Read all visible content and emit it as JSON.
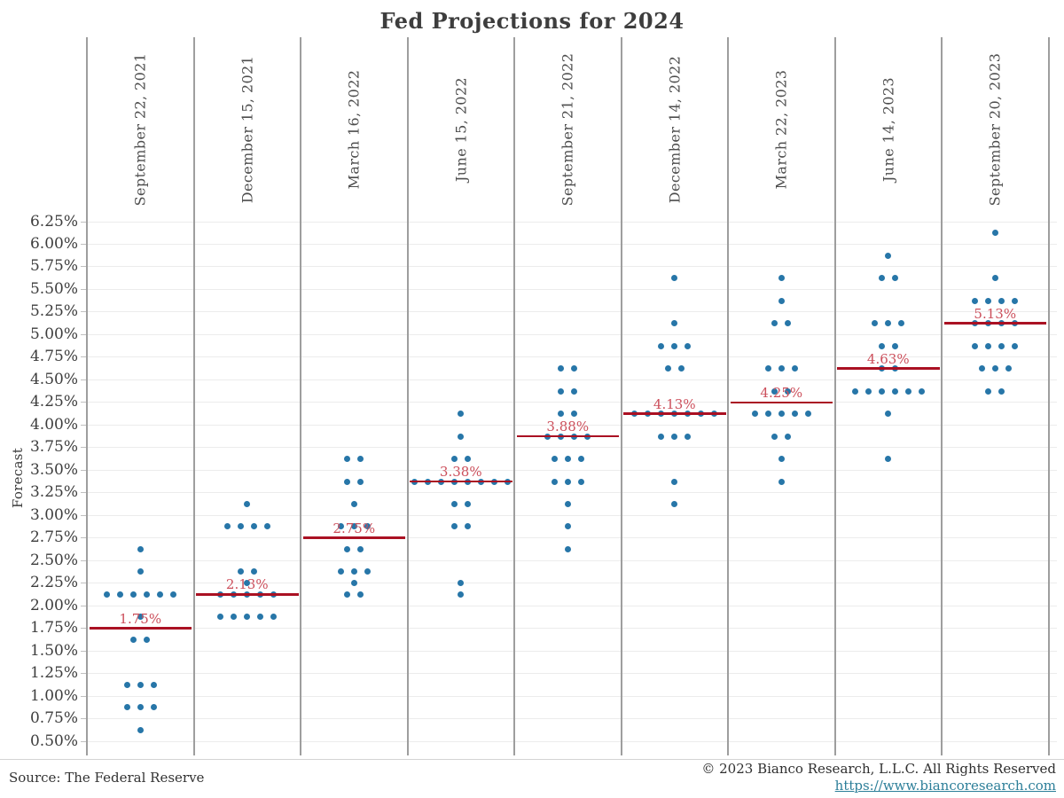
{
  "title": "Fed Projections for 2024",
  "y_axis": {
    "label": "Forecast",
    "ticks": [
      "6.25%",
      "6.00%",
      "5.75%",
      "5.50%",
      "5.25%",
      "5.00%",
      "4.75%",
      "4.50%",
      "4.25%",
      "4.00%",
      "3.75%",
      "3.50%",
      "3.25%",
      "3.00%",
      "2.75%",
      "2.50%",
      "2.25%",
      "2.00%",
      "1.75%",
      "1.50%",
      "1.25%",
      "1.00%",
      "0.75%",
      "0.50%"
    ]
  },
  "footer": {
    "source": "Source: The Federal Reserve",
    "copyright": "© 2023 Bianco Research, L.L.C. All Rights Reserved",
    "link": "https://www.biancoresearch.com"
  },
  "colors": {
    "dot": "#2776a8",
    "median_line": "#aa1123",
    "median_label": "#cc4f5b",
    "grid_horizontal": "#ececec",
    "column_separator": "#9e9e9e",
    "text": "#3d3d3d",
    "link": "#2d7f99"
  },
  "chart_data": {
    "type": "scatter",
    "title": "Fed Projections for 2024",
    "xlabel": "",
    "ylabel": "Forecast",
    "ylim": [
      0.5,
      6.25
    ],
    "ytick_step": 0.25,
    "grid": true,
    "legend": "none",
    "description": "Dot plot of individual FOMC member federal funds rate projections for 2024 at nine meetings; red line and label mark the median projection.",
    "columns": [
      {
        "date": "September 22, 2021",
        "median": 1.75,
        "median_label": "1.75%",
        "dots": [
          [
            2.625,
            1
          ],
          [
            2.375,
            1
          ],
          [
            2.125,
            6
          ],
          [
            1.875,
            1
          ],
          [
            1.625,
            2
          ],
          [
            1.125,
            3
          ],
          [
            0.875,
            3
          ],
          [
            0.625,
            1
          ]
        ]
      },
      {
        "date": "December 15, 2021",
        "median": 2.125,
        "median_label": "2.13%",
        "dots": [
          [
            3.125,
            1
          ],
          [
            2.875,
            4
          ],
          [
            2.375,
            2
          ],
          [
            2.25,
            1
          ],
          [
            2.125,
            5
          ],
          [
            1.875,
            5
          ]
        ]
      },
      {
        "date": "March 16, 2022",
        "median": 2.75,
        "median_label": "2.75%",
        "dots": [
          [
            3.625,
            2
          ],
          [
            3.375,
            2
          ],
          [
            3.125,
            1
          ],
          [
            2.875,
            3
          ],
          [
            2.625,
            2
          ],
          [
            2.375,
            3
          ],
          [
            2.25,
            1
          ],
          [
            2.125,
            2
          ]
        ]
      },
      {
        "date": "June 15, 2022",
        "median": 3.375,
        "median_label": "3.38%",
        "dots": [
          [
            4.125,
            1
          ],
          [
            3.875,
            1
          ],
          [
            3.625,
            2
          ],
          [
            3.375,
            8
          ],
          [
            3.125,
            2
          ],
          [
            2.875,
            2
          ],
          [
            2.25,
            1
          ],
          [
            2.125,
            1
          ]
        ]
      },
      {
        "date": "September 21, 2022",
        "median": 3.875,
        "median_label": "3.88%",
        "dots": [
          [
            4.625,
            2
          ],
          [
            4.375,
            2
          ],
          [
            4.125,
            2
          ],
          [
            3.875,
            4
          ],
          [
            3.625,
            3
          ],
          [
            3.375,
            3
          ],
          [
            3.125,
            1
          ],
          [
            2.875,
            1
          ],
          [
            2.625,
            1
          ]
        ]
      },
      {
        "date": "December 14, 2022",
        "median": 4.125,
        "median_label": "4.13%",
        "dots": [
          [
            5.625,
            1
          ],
          [
            5.125,
            1
          ],
          [
            4.875,
            3
          ],
          [
            4.625,
            2
          ],
          [
            4.125,
            7
          ],
          [
            3.875,
            3
          ],
          [
            3.375,
            1
          ],
          [
            3.125,
            1
          ]
        ]
      },
      {
        "date": "March 22, 2023",
        "median": 4.25,
        "median_label": "4.25%",
        "dots": [
          [
            5.625,
            1
          ],
          [
            5.375,
            1
          ],
          [
            5.125,
            2
          ],
          [
            4.625,
            3
          ],
          [
            4.375,
            2
          ],
          [
            4.125,
            5
          ],
          [
            3.875,
            2
          ],
          [
            3.625,
            1
          ],
          [
            3.375,
            1
          ]
        ]
      },
      {
        "date": "June 14, 2023",
        "median": 4.625,
        "median_label": "4.63%",
        "dots": [
          [
            5.875,
            1
          ],
          [
            5.625,
            2
          ],
          [
            5.125,
            3
          ],
          [
            4.875,
            2
          ],
          [
            4.625,
            2
          ],
          [
            4.375,
            6
          ],
          [
            4.125,
            1
          ],
          [
            3.625,
            1
          ]
        ]
      },
      {
        "date": "September 20, 2023",
        "median": 5.125,
        "median_label": "5.13%",
        "dots": [
          [
            6.125,
            1
          ],
          [
            5.625,
            1
          ],
          [
            5.375,
            4
          ],
          [
            5.125,
            4
          ],
          [
            4.875,
            4
          ],
          [
            4.625,
            3
          ],
          [
            4.375,
            2
          ]
        ]
      }
    ]
  }
}
